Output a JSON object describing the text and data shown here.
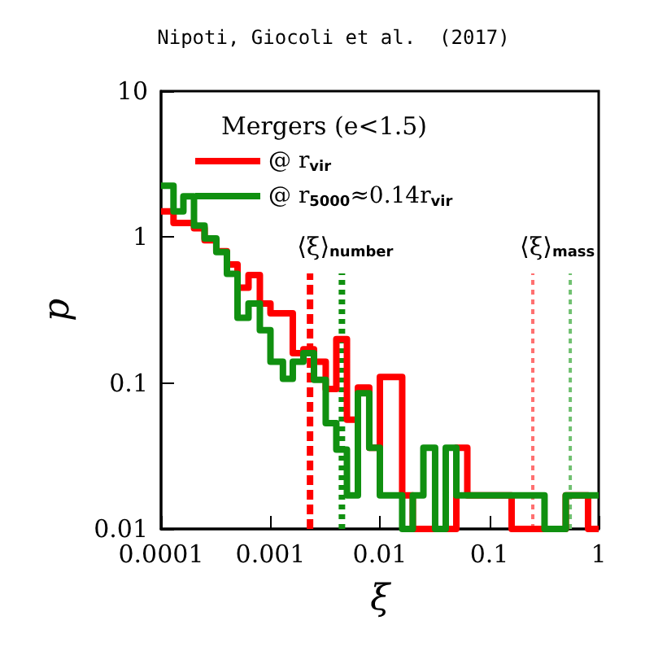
{
  "chart_data": {
    "type": "histogram",
    "title": "Nipoti, Giocoli et al.  (2017)",
    "xlabel": "ξ",
    "ylabel": "p",
    "legend_title": "Mergers (e<1.5)",
    "bins": [
      0.0001,
      0.00013,
      0.00016,
      0.0002,
      0.00025,
      0.00032,
      0.0004,
      0.0005,
      0.00063,
      0.0008,
      0.001,
      0.0013,
      0.0016,
      0.002,
      0.0025,
      0.0032,
      0.004,
      0.005,
      0.0063,
      0.008,
      0.01,
      0.013,
      0.016,
      0.02,
      0.025,
      0.032,
      0.04,
      0.05,
      0.063,
      0.08,
      0.1,
      0.13,
      0.16,
      0.2,
      0.25,
      0.32,
      0.4,
      0.5,
      0.63,
      0.8,
      1
    ],
    "series": [
      {
        "name": "@ r$_{vir}$",
        "color": "#ff0000",
        "values": [
          1.5,
          1.25,
          1.25,
          1.15,
          0.95,
          0.8,
          0.65,
          0.45,
          0.55,
          0.35,
          0.3,
          0.3,
          0.16,
          0.17,
          0.14,
          0.091,
          0.2,
          0.056,
          0.093,
          0.036,
          0.11,
          0.11,
          0.017,
          null,
          null,
          null,
          null,
          0.036,
          0.017,
          0.017,
          0.017,
          0.017,
          null,
          null,
          null,
          null,
          null,
          0.017,
          0.017,
          null
        ]
      },
      {
        "name": "@ r$_{5000}$≈0.14r$_{vir}$",
        "color": "#109010",
        "values": [
          2.25,
          1.5,
          1.9,
          1.2,
          0.98,
          0.79,
          0.56,
          0.28,
          0.35,
          0.23,
          0.14,
          0.107,
          0.14,
          0.16,
          0.105,
          0.053,
          0.035,
          0.017,
          0.085,
          0.036,
          0.017,
          0.017,
          null,
          0.017,
          0.036,
          null,
          0.036,
          0.017,
          0.017,
          0.017,
          0.017,
          0.017,
          0.017,
          0.017,
          0.017,
          null,
          null,
          0.017,
          0.017,
          0.017
        ]
      }
    ],
    "ref_lines": [
      {
        "axis": "x",
        "value": 0.0023,
        "color": "#ff0000",
        "line_style": "dashed",
        "label": "⟨ξ⟩$_{number}$"
      },
      {
        "axis": "x",
        "value": 0.0045,
        "color": "#109010",
        "line_style": "dotted"
      },
      {
        "axis": "x",
        "value": 0.25,
        "color": "#ff7070",
        "line_style": "dotted",
        "label": "⟨ξ⟩$_{mass}$"
      },
      {
        "axis": "x",
        "value": 0.55,
        "color": "#70c070",
        "line_style": "dotted"
      }
    ],
    "log": "xy",
    "xlim": [
      0.0001,
      1
    ],
    "ylim": [
      0.01,
      10
    ],
    "xticks": [
      {
        "value": 0.0001,
        "label": "0.0001"
      },
      {
        "value": 0.001,
        "label": "0.001"
      },
      {
        "value": 0.01,
        "label": "0.01"
      },
      {
        "value": 0.1,
        "label": "0.1"
      },
      1
    ],
    "yticks": [
      {
        "value": 0.01,
        "label": "0.01"
      },
      {
        "value": 0.1,
        "label": "0.1"
      },
      1,
      10
    ],
    "legend": "top",
    "grid": false
  }
}
